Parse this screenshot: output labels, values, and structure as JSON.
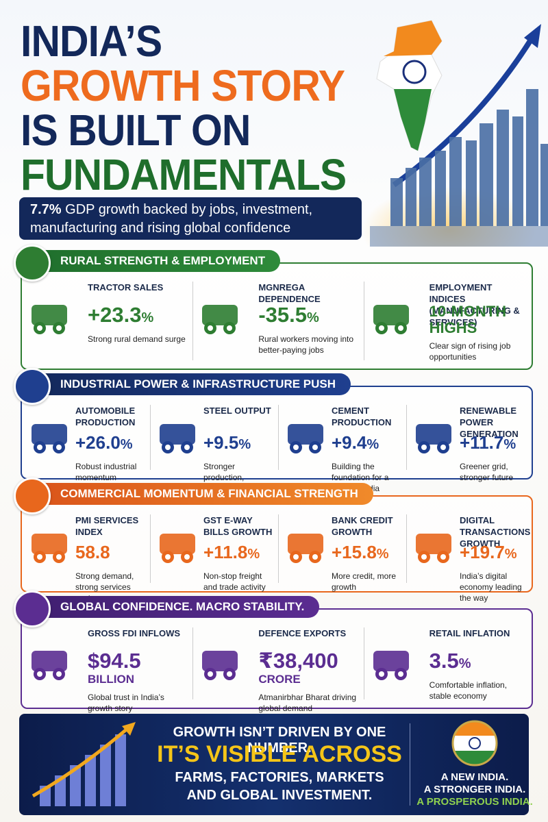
{
  "header": {
    "title_lines": [
      "INDIA’S",
      "GROWTH STORY",
      "IS BUILT ON",
      "FUNDAMENTALS"
    ],
    "subtitle_highlight": "7.7%",
    "subtitle_text": "GDP growth backed by jobs, investment, manufacturing and rising global confidence"
  },
  "sections": [
    {
      "title": "RURAL STRENGTH & EMPLOYMENT",
      "items": [
        {
          "label": "TRACTOR SALES",
          "value": "+23.3",
          "unit": "%",
          "note": "Strong rural demand surge"
        },
        {
          "label": "MGNREGA DEPENDENCE",
          "value": "-35.5",
          "unit": "%",
          "note": "Rural workers moving into better-paying jobs"
        },
        {
          "label": "EMPLOYMENT INDICES (MANUFACTURING & SERVICES)",
          "value": "10-MONTH HIGHS",
          "note": "Clear sign of rising job opportunities"
        }
      ]
    },
    {
      "title": "INDUSTRIAL POWER & INFRASTRUCTURE PUSH",
      "items": [
        {
          "label": "AUTOMOBILE PRODUCTION",
          "value": "+26.0",
          "unit": "%",
          "note": "Robust industrial momentum"
        },
        {
          "label": "STEEL OUTPUT",
          "value": "+9.5",
          "unit": "%",
          "note": "Stronger production, stronger India"
        },
        {
          "label": "CEMENT PRODUCTION",
          "value": "+9.4",
          "unit": "%",
          "note": "Building the foundation for a modern India"
        },
        {
          "label": "RENEWABLE POWER GENERATION",
          "value": "+11.7",
          "unit": "%",
          "note": "Greener grid, stronger future"
        }
      ]
    },
    {
      "title": "COMMERCIAL MOMENTUM & FINANCIAL STRENGTH",
      "items": [
        {
          "label": "PMI SERVICES INDEX",
          "value": "58.8",
          "note": "Strong demand, strong services sector"
        },
        {
          "label": "GST E-WAY BILLS GROWTH",
          "value": "+11.8",
          "unit": "%",
          "note": "Non-stop freight and trade activity"
        },
        {
          "label": "BANK CREDIT GROWTH",
          "value": "+15.8",
          "unit": "%",
          "note": "More credit, more growth"
        },
        {
          "label": "DIGITAL TRANSACTIONS GROWTH",
          "value": "+19.7",
          "unit": "%",
          "note": "India’s digital economy leading the way"
        }
      ]
    },
    {
      "title": "GLOBAL CONFIDENCE. MACRO STABILITY.",
      "items": [
        {
          "label": "GROSS FDI INFLOWS",
          "value": "$94.5",
          "sub": "BILLION",
          "note": "Global trust in India’s growth story"
        },
        {
          "label": "DEFENCE EXPORTS",
          "value": "₹38,400",
          "sub": "CRORE",
          "note": "Atmanirbhar Bharat driving global demand"
        },
        {
          "label": "RETAIL INFLATION",
          "value": "3.5",
          "unit": "%",
          "note": "Comfortable inflation, stable economy"
        }
      ]
    }
  ],
  "footer": {
    "lines": [
      "GROWTH ISN’T DRIVEN BY ONE NUMBER.",
      "IT’S VISIBLE ACROSS",
      "FARMS, FACTORIES, MARKETS",
      "AND GLOBAL INVESTMENT."
    ],
    "slogans": [
      "A NEW INDIA.",
      "A STRONGER INDIA.",
      "A PROSPEROUS INDIA."
    ]
  }
}
